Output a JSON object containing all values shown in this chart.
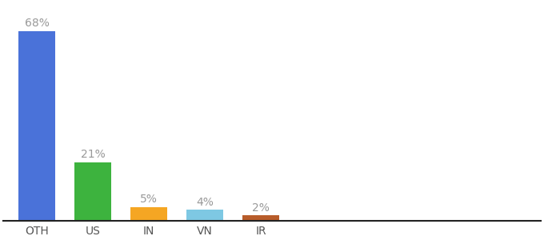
{
  "categories": [
    "OTH",
    "US",
    "IN",
    "VN",
    "IR"
  ],
  "values": [
    68,
    21,
    5,
    4,
    2
  ],
  "bar_colors": [
    "#4a72d9",
    "#3db33e",
    "#f5a623",
    "#7ec8e3",
    "#b85c2a"
  ],
  "labels": [
    "68%",
    "21%",
    "5%",
    "4%",
    "2%"
  ],
  "background_color": "#ffffff",
  "ylim": [
    0,
    78
  ],
  "bar_width": 0.65,
  "label_fontsize": 10,
  "tick_fontsize": 10,
  "label_color": "#999999",
  "tick_color": "#555555",
  "figsize": [
    6.8,
    3.0
  ],
  "dpi": 100
}
